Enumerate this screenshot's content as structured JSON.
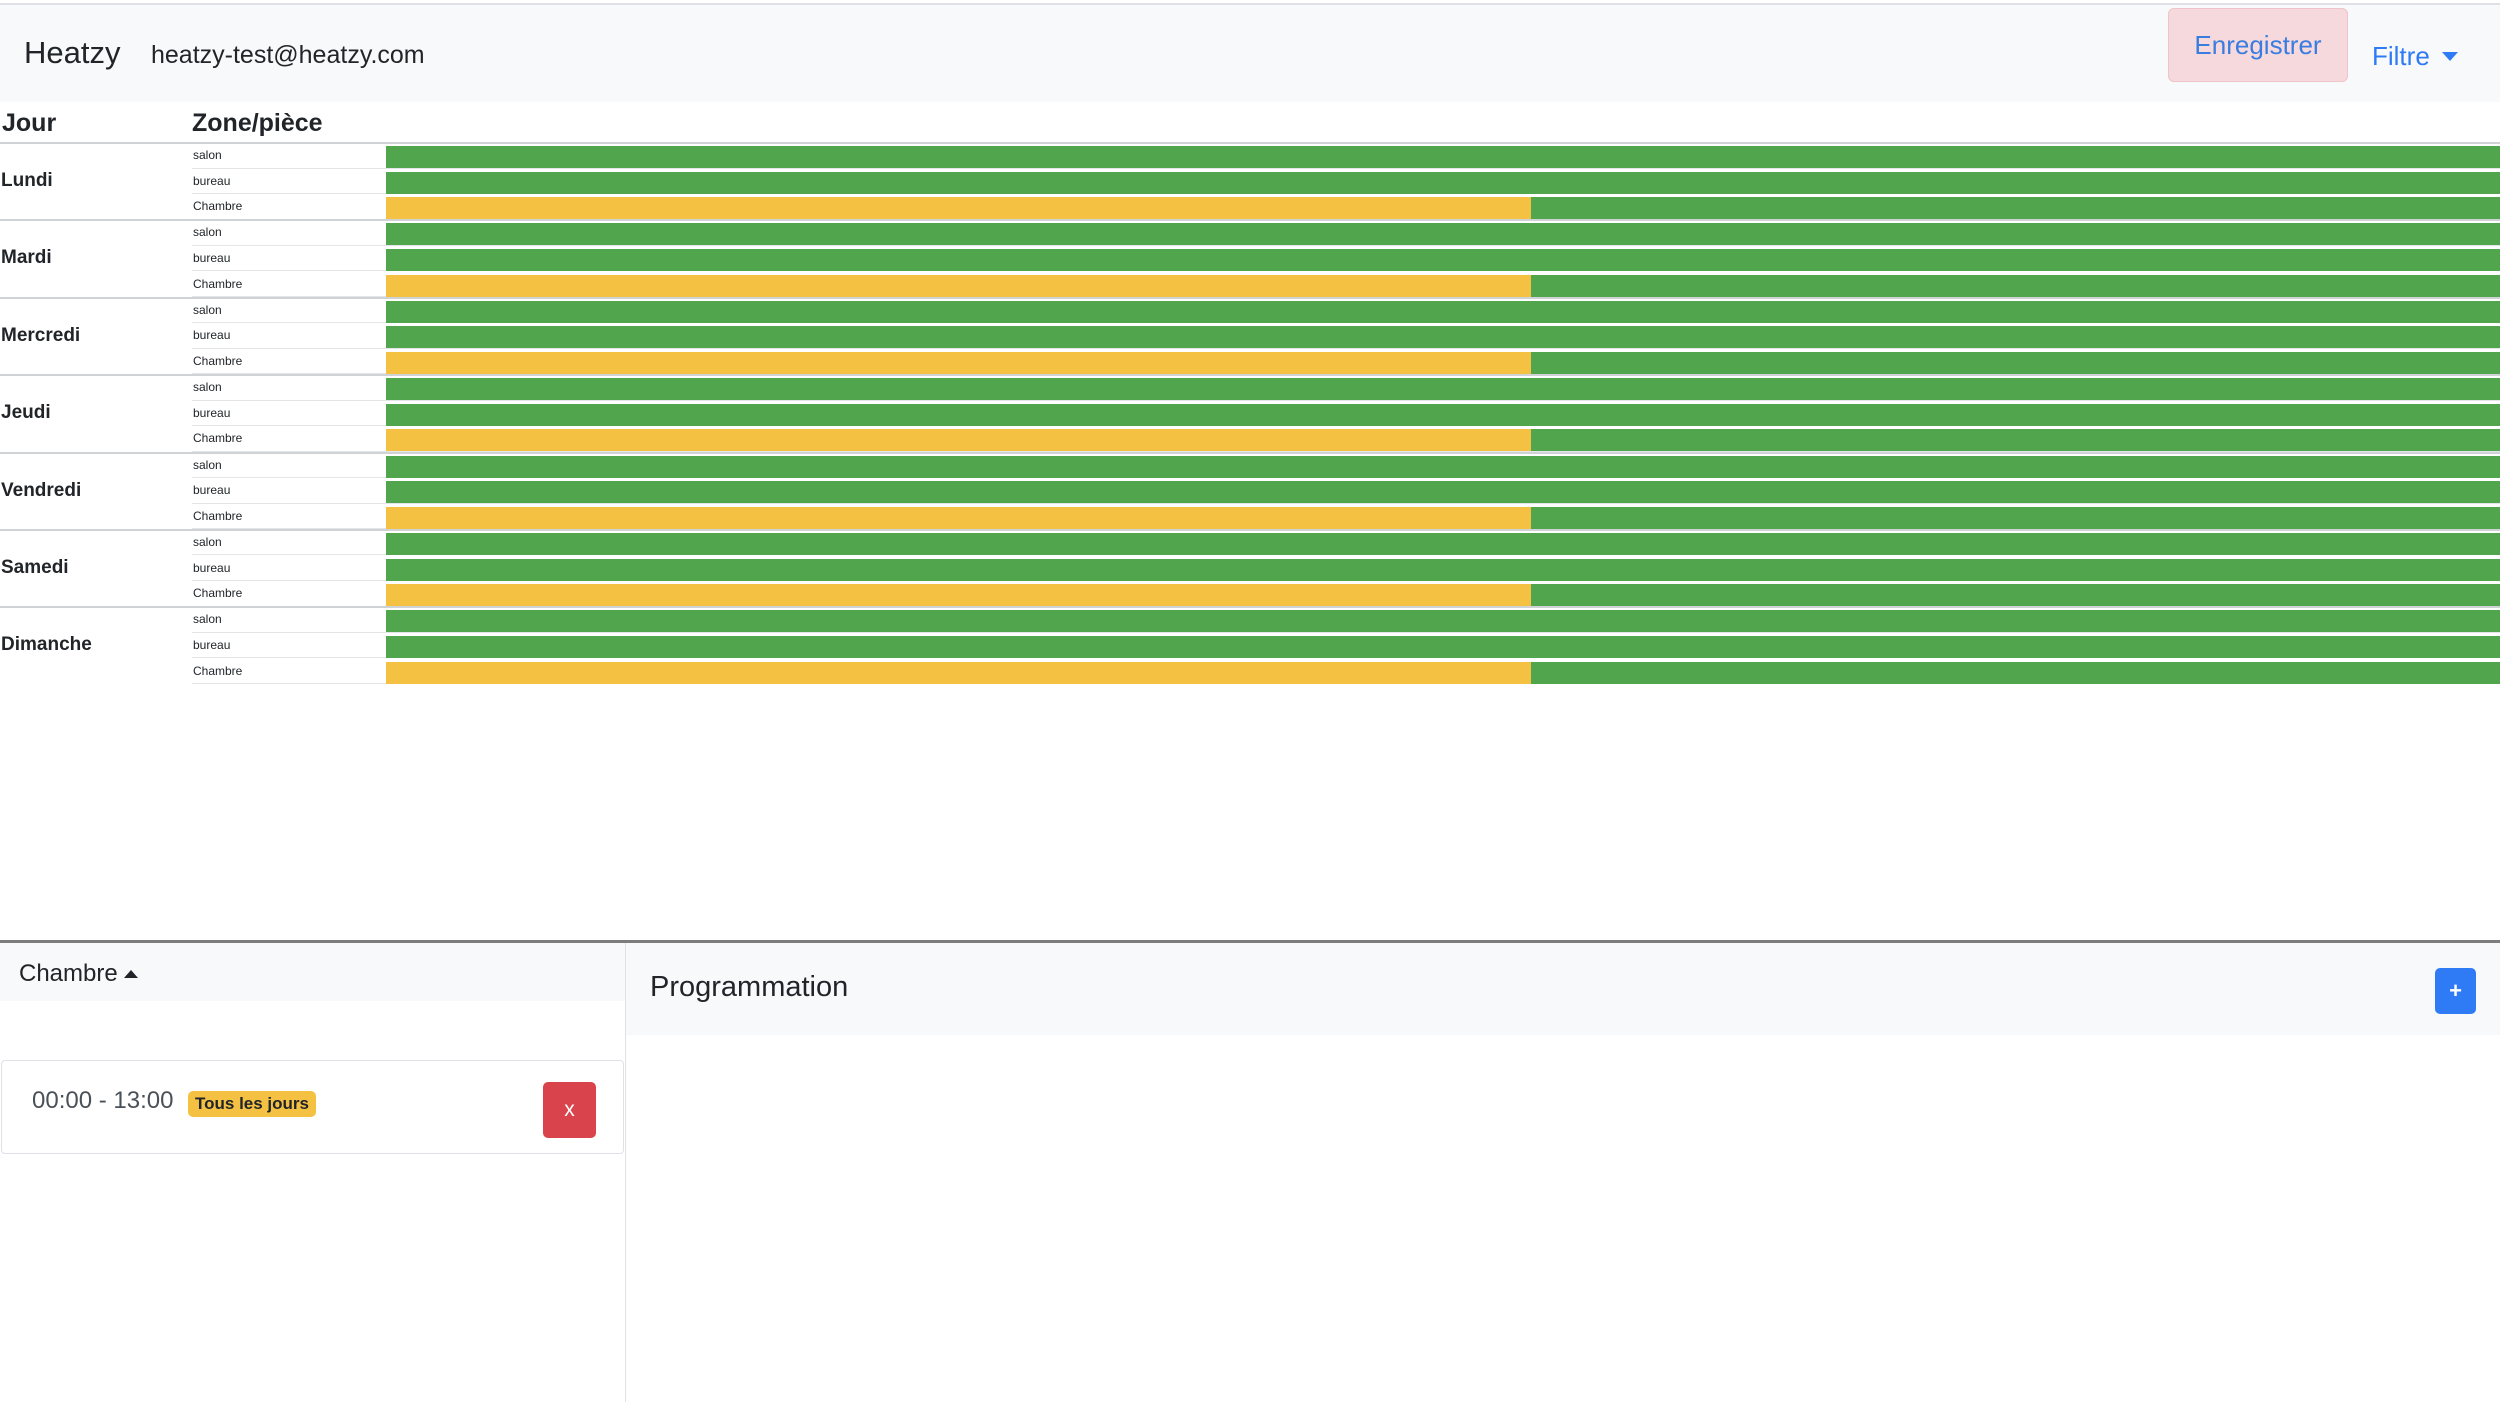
{
  "navbar": {
    "brand": "Heatzy",
    "user_email": "heatzy-test@heatzy.com",
    "save_label": "Enregistrer",
    "filter_label": "Filtre"
  },
  "table": {
    "header_day": "Jour",
    "header_zone": "Zone/pièce"
  },
  "colors": {
    "confort": "#51a54d",
    "eco": "#f4c142"
  },
  "days": [
    {
      "name": "Lundi",
      "zones": [
        {
          "label": "salon",
          "segments": [
            {
              "mode": "confort",
              "fraction": 1
            }
          ]
        },
        {
          "label": "bureau",
          "segments": [
            {
              "mode": "confort",
              "fraction": 1
            }
          ]
        },
        {
          "label": "Chambre",
          "segments": [
            {
              "mode": "eco",
              "fraction": 0.5417
            },
            {
              "mode": "confort",
              "fraction": 0.4583
            }
          ]
        }
      ]
    },
    {
      "name": "Mardi",
      "zones": [
        {
          "label": "salon",
          "segments": [
            {
              "mode": "confort",
              "fraction": 1
            }
          ]
        },
        {
          "label": "bureau",
          "segments": [
            {
              "mode": "confort",
              "fraction": 1
            }
          ]
        },
        {
          "label": "Chambre",
          "segments": [
            {
              "mode": "eco",
              "fraction": 0.5417
            },
            {
              "mode": "confort",
              "fraction": 0.4583
            }
          ]
        }
      ]
    },
    {
      "name": "Mercredi",
      "zones": [
        {
          "label": "salon",
          "segments": [
            {
              "mode": "confort",
              "fraction": 1
            }
          ]
        },
        {
          "label": "bureau",
          "segments": [
            {
              "mode": "confort",
              "fraction": 1
            }
          ]
        },
        {
          "label": "Chambre",
          "segments": [
            {
              "mode": "eco",
              "fraction": 0.5417
            },
            {
              "mode": "confort",
              "fraction": 0.4583
            }
          ]
        }
      ]
    },
    {
      "name": "Jeudi",
      "zones": [
        {
          "label": "salon",
          "segments": [
            {
              "mode": "confort",
              "fraction": 1
            }
          ]
        },
        {
          "label": "bureau",
          "segments": [
            {
              "mode": "confort",
              "fraction": 1
            }
          ]
        },
        {
          "label": "Chambre",
          "segments": [
            {
              "mode": "eco",
              "fraction": 0.5417
            },
            {
              "mode": "confort",
              "fraction": 0.4583
            }
          ]
        }
      ]
    },
    {
      "name": "Vendredi",
      "zones": [
        {
          "label": "salon",
          "segments": [
            {
              "mode": "confort",
              "fraction": 1
            }
          ]
        },
        {
          "label": "bureau",
          "segments": [
            {
              "mode": "confort",
              "fraction": 1
            }
          ]
        },
        {
          "label": "Chambre",
          "segments": [
            {
              "mode": "eco",
              "fraction": 0.5417
            },
            {
              "mode": "confort",
              "fraction": 0.4583
            }
          ]
        }
      ]
    },
    {
      "name": "Samedi",
      "zones": [
        {
          "label": "salon",
          "segments": [
            {
              "mode": "confort",
              "fraction": 1
            }
          ]
        },
        {
          "label": "bureau",
          "segments": [
            {
              "mode": "confort",
              "fraction": 1
            }
          ]
        },
        {
          "label": "Chambre",
          "segments": [
            {
              "mode": "eco",
              "fraction": 0.5417
            },
            {
              "mode": "confort",
              "fraction": 0.4583
            }
          ]
        }
      ]
    },
    {
      "name": "Dimanche",
      "zones": [
        {
          "label": "salon",
          "segments": [
            {
              "mode": "confort",
              "fraction": 1
            }
          ]
        },
        {
          "label": "bureau",
          "segments": [
            {
              "mode": "confort",
              "fraction": 1
            }
          ]
        },
        {
          "label": "Chambre",
          "segments": [
            {
              "mode": "eco",
              "fraction": 0.5417
            },
            {
              "mode": "confort",
              "fraction": 0.4583
            }
          ]
        }
      ]
    }
  ],
  "zone_panel": {
    "selected_zone": "Chambre",
    "slot": {
      "time_range": "00:00 - 13:00",
      "badge": "Tous les jours",
      "delete_label": "x"
    }
  },
  "programmation": {
    "title": "Programmation",
    "add_label": "+"
  }
}
